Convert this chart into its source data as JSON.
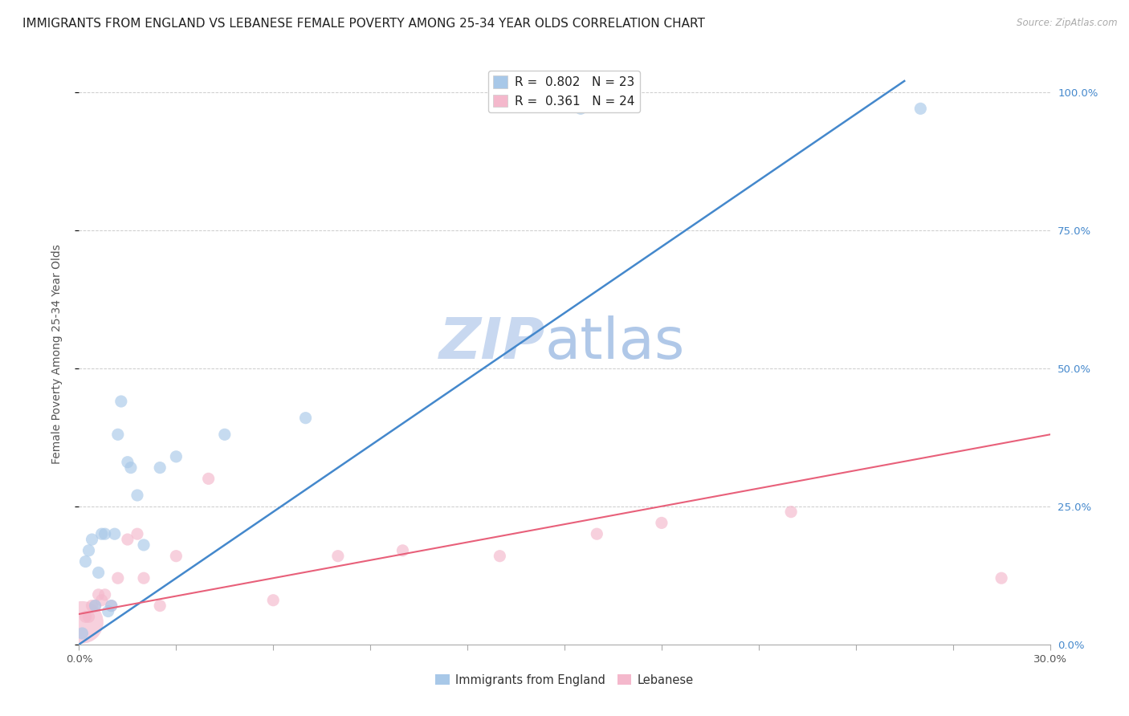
{
  "title": "IMMIGRANTS FROM ENGLAND VS LEBANESE FEMALE POVERTY AMONG 25-34 YEAR OLDS CORRELATION CHART",
  "source": "Source: ZipAtlas.com",
  "ylabel": "Female Poverty Among 25-34 Year Olds",
  "legend_label1": "Immigrants from England",
  "legend_label2": "Lebanese",
  "blue_color": "#a8c8e8",
  "pink_color": "#f4b8cc",
  "line_blue": "#4488cc",
  "line_pink": "#e8607a",
  "watermark_zip_color": "#c8d8f0",
  "watermark_atlas_color": "#b0c8e8",
  "eng_x": [
    0.001,
    0.002,
    0.003,
    0.004,
    0.005,
    0.006,
    0.007,
    0.008,
    0.009,
    0.01,
    0.011,
    0.012,
    0.013,
    0.015,
    0.016,
    0.018,
    0.02,
    0.025,
    0.03,
    0.045,
    0.07,
    0.155,
    0.26
  ],
  "eng_y": [
    0.02,
    0.15,
    0.17,
    0.19,
    0.07,
    0.13,
    0.2,
    0.2,
    0.06,
    0.07,
    0.2,
    0.38,
    0.44,
    0.33,
    0.32,
    0.27,
    0.18,
    0.32,
    0.34,
    0.38,
    0.41,
    0.97,
    0.97
  ],
  "leb_x": [
    0.001,
    0.002,
    0.003,
    0.004,
    0.005,
    0.006,
    0.007,
    0.008,
    0.01,
    0.012,
    0.015,
    0.018,
    0.02,
    0.025,
    0.03,
    0.04,
    0.06,
    0.08,
    0.1,
    0.13,
    0.16,
    0.18,
    0.22,
    0.285
  ],
  "leb_y": [
    0.04,
    0.05,
    0.05,
    0.07,
    0.07,
    0.09,
    0.08,
    0.09,
    0.07,
    0.12,
    0.19,
    0.2,
    0.12,
    0.07,
    0.16,
    0.3,
    0.08,
    0.16,
    0.17,
    0.16,
    0.2,
    0.22,
    0.24,
    0.12
  ],
  "leb_size_large": 0,
  "blue_line_x0": 0.0,
  "blue_line_y0": 0.0,
  "blue_line_x1": 0.255,
  "blue_line_y1": 1.02,
  "pink_line_x0": 0.0,
  "pink_line_y0": 0.055,
  "pink_line_x1": 0.3,
  "pink_line_y1": 0.38,
  "xmin": 0.0,
  "xmax": 0.3,
  "ymin": 0.0,
  "ymax": 1.05,
  "grid_color": "#cccccc",
  "bg_color": "#ffffff",
  "title_fontsize": 11,
  "axis_label_fontsize": 10,
  "tick_fontsize": 9.5,
  "point_size": 120
}
